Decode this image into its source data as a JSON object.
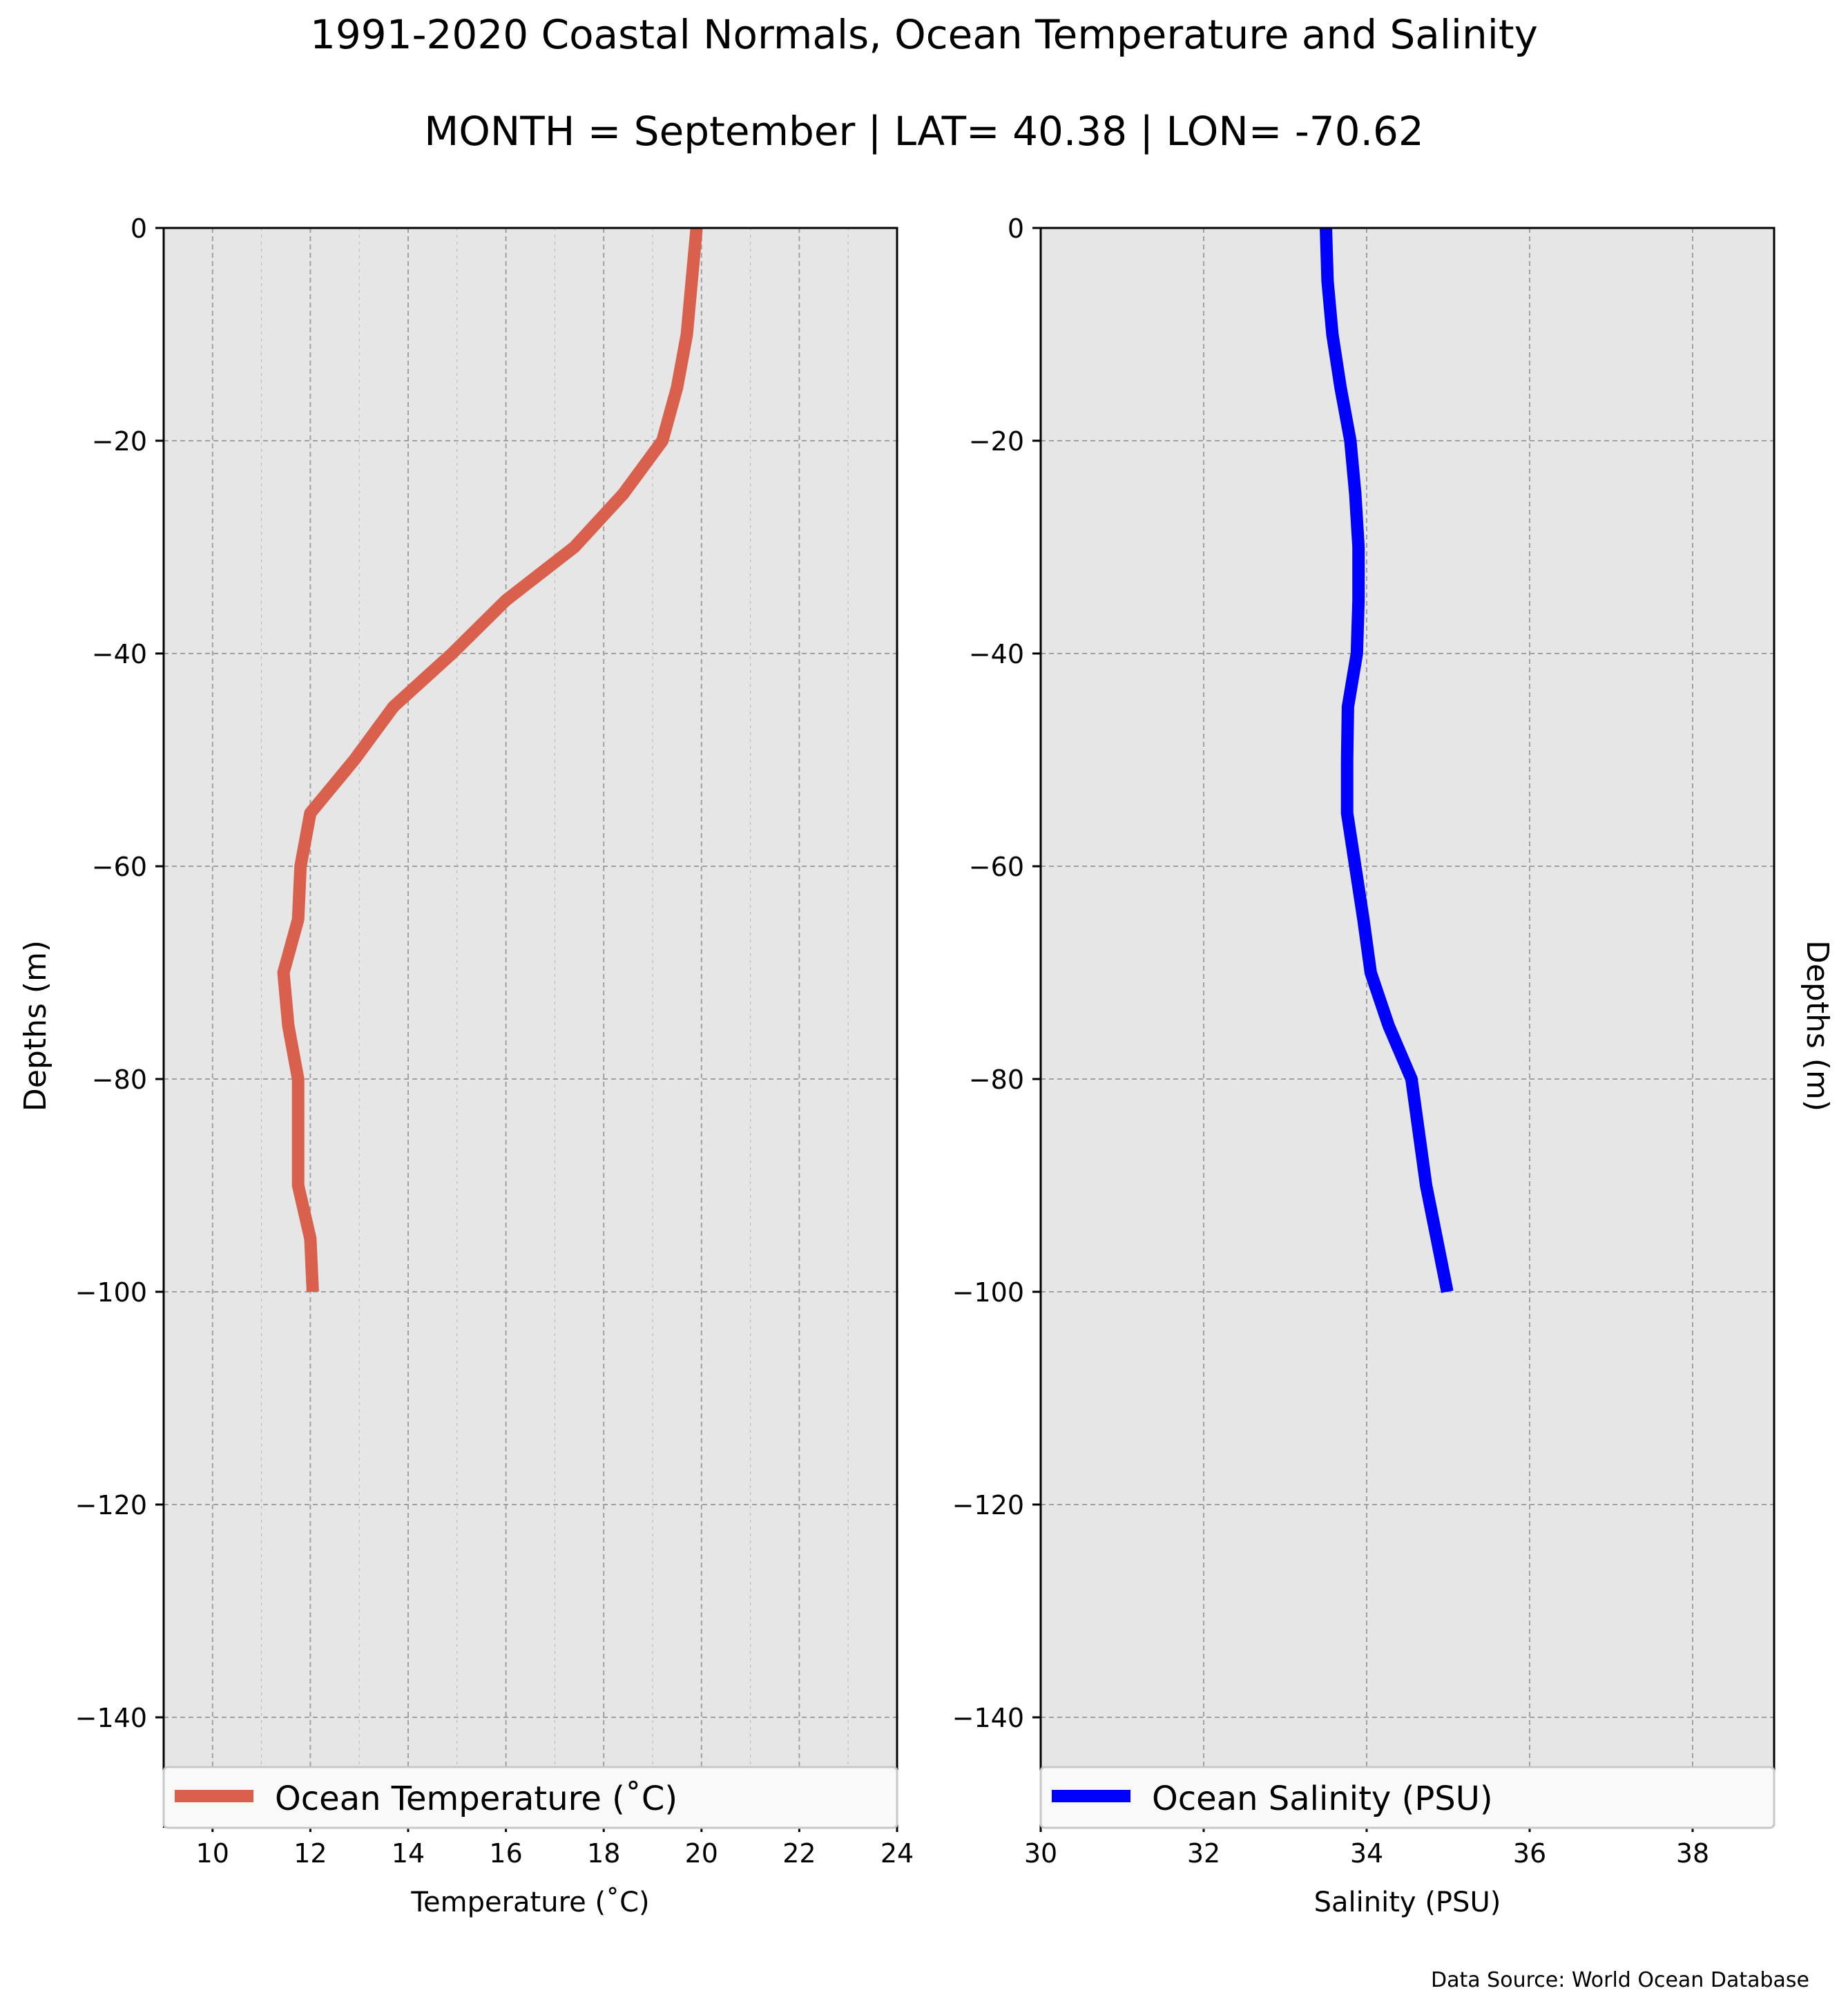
{
  "title": "1991-2020 Coastal Normals, Ocean Temperature and Salinity",
  "subtitle": "MONTH = September | LAT= 40.38 | LON= -70.62",
  "source": "Data Source: World Ocean Database",
  "colors": {
    "background": "#ffffff",
    "plot_background": "#e6e6e6",
    "grid": "#a0a0a0",
    "temperature_line": "#d9604c",
    "salinity_line": "#0000ff"
  },
  "chart_data": [
    {
      "type": "line",
      "xlabel": "Temperature ($^\\circ$C)",
      "xlabel_display": "Temperature (˚C)",
      "ylabel": "Depths (m)",
      "xlim": [
        9,
        24
      ],
      "ylim": [
        -150,
        0
      ],
      "x_ticks": [
        "10",
        "12",
        "14",
        "16",
        "18",
        "20",
        "22",
        "24"
      ],
      "y_ticks": [
        "0",
        "−20",
        "−40",
        "−60",
        "−80",
        "−100",
        "−120",
        "−140"
      ],
      "grid": true,
      "legend_placement": "lower center",
      "series": [
        {
          "name": "Ocean Temperature (˚C)",
          "x": [
            19.9,
            19.8,
            19.7,
            19.5,
            19.2,
            18.4,
            17.4,
            16.0,
            14.9,
            13.7,
            12.9,
            12.0,
            11.8,
            11.75,
            11.45,
            11.55,
            11.75,
            11.75,
            11.75,
            12.0,
            12.05
          ],
          "y": [
            0,
            -5,
            -10,
            -15,
            -20,
            -25,
            -30,
            -35,
            -40,
            -45,
            -50,
            -55,
            -60,
            -65,
            -70,
            -75,
            -80,
            -85,
            -90,
            -95,
            -100
          ]
        }
      ]
    },
    {
      "type": "line",
      "xlabel": "Salinity (PSU)",
      "ylabel": "Depths (m)",
      "xlim": [
        30,
        39
      ],
      "ylim": [
        -150,
        0
      ],
      "x_ticks": [
        "30",
        "32",
        "34",
        "36",
        "38"
      ],
      "y_ticks": [
        "0",
        "−20",
        "−40",
        "−60",
        "−80",
        "−100",
        "−120",
        "−140"
      ],
      "grid": true,
      "legend_placement": "lower center",
      "series": [
        {
          "name": "Ocean Salinity (PSU)",
          "x": [
            33.5,
            33.52,
            33.58,
            33.68,
            33.8,
            33.86,
            33.9,
            33.9,
            33.88,
            33.77,
            33.76,
            33.76,
            33.86,
            33.96,
            34.05,
            34.27,
            34.55,
            34.64,
            34.73,
            34.86,
            34.99
          ],
          "y": [
            0,
            -5,
            -10,
            -15,
            -20,
            -25,
            -30,
            -35,
            -40,
            -45,
            -50,
            -55,
            -60,
            -65,
            -70,
            -75,
            -80,
            -85,
            -90,
            -95,
            -100
          ]
        }
      ]
    }
  ]
}
